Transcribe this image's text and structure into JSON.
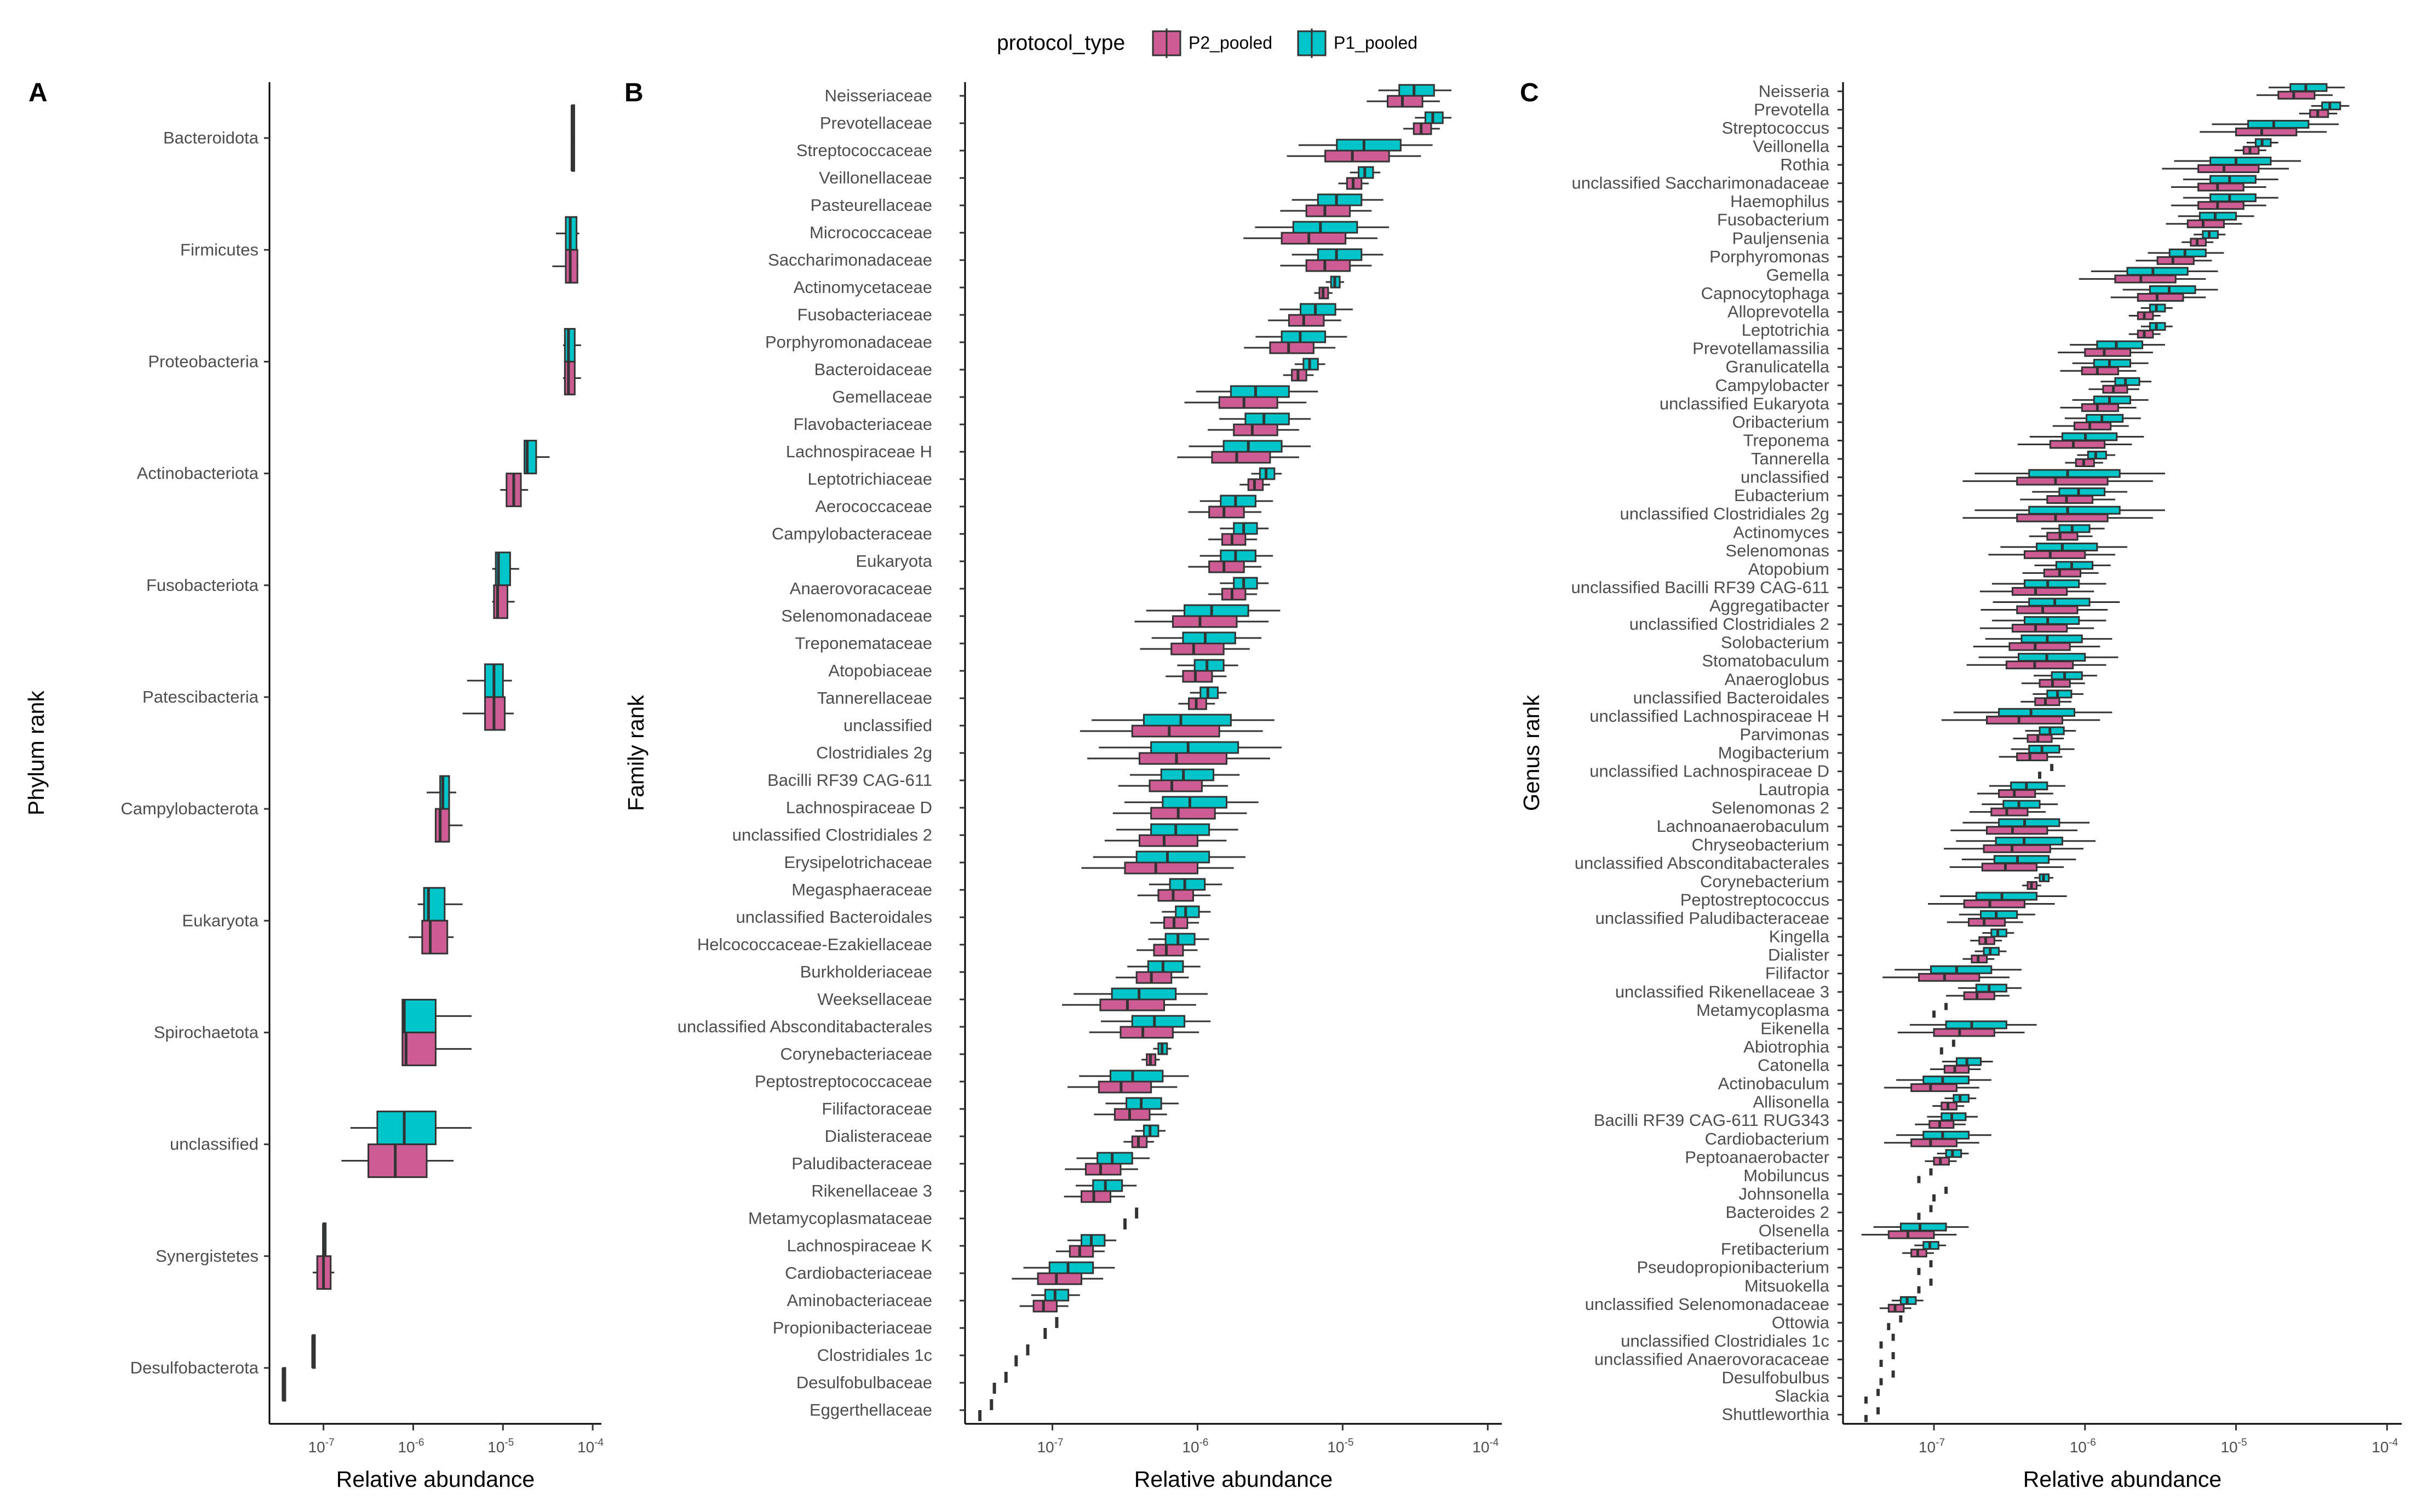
{
  "legend": {
    "title": "protocol_type",
    "items": [
      {
        "label": "P2_pooled",
        "color": "#cc5c93"
      },
      {
        "label": "P1_pooled",
        "color": "#00c5c8"
      }
    ]
  },
  "chart_data": [
    {
      "type": "boxplot",
      "panel": "A",
      "xlabel": "Relative abundance",
      "ylabel": "Phylum rank",
      "xscale": "log10",
      "xlim": [
        2.5e-08,
        0.000125
      ],
      "xticks": [
        {
          "base": "10",
          "exp": "-7",
          "value": -7
        },
        {
          "base": "10",
          "exp": "-6",
          "value": -6
        },
        {
          "base": "10",
          "exp": "-5",
          "value": -5
        },
        {
          "base": "10",
          "exp": "-4",
          "value": -4
        }
      ],
      "note": "box stats as [lower whisker, Q1, median, Q3, upper whisker] in log10 relative abundance",
      "categories": [
        {
          "name": "Bacteroidota",
          "P1_pooled": [
            -4.23,
            -4.23,
            -4.23,
            -4.23,
            -4.23
          ],
          "P2_pooled": [
            -4.23,
            -4.23,
            -4.23,
            -4.23,
            -4.23
          ]
        },
        {
          "name": "Firmicutes",
          "P1_pooled": [
            -4.41,
            -4.3,
            -4.25,
            -4.18,
            -4.15
          ],
          "P2_pooled": [
            -4.45,
            -4.3,
            -4.25,
            -4.17,
            -4.16
          ]
        },
        {
          "name": "Proteobacteria",
          "P1_pooled": [
            -4.33,
            -4.31,
            -4.27,
            -4.2,
            -4.13
          ],
          "P2_pooled": [
            -4.33,
            -4.31,
            -4.27,
            -4.2,
            -4.13
          ]
        },
        {
          "name": "Actinobacteriota",
          "P1_pooled": [
            -4.62,
            -4.76,
            -4.73,
            -4.63,
            -4.48
          ],
          "P2_pooled": [
            -5.03,
            -4.96,
            -4.88,
            -4.8,
            -4.72
          ]
        },
        {
          "name": "Fusobacteriota",
          "P1_pooled": [
            -5.12,
            -5.08,
            -5.05,
            -4.92,
            -4.82
          ],
          "P2_pooled": [
            -5.12,
            -5.1,
            -5.06,
            -4.95,
            -4.87
          ]
        },
        {
          "name": "Patescibacteria",
          "P1_pooled": [
            -5.4,
            -5.2,
            -5.1,
            -5.0,
            -4.9
          ],
          "P2_pooled": [
            -5.45,
            -5.2,
            -5.1,
            -4.98,
            -4.88
          ]
        },
        {
          "name": "Campylobacterota",
          "P1_pooled": [
            -5.85,
            -5.7,
            -5.67,
            -5.6,
            -5.52
          ],
          "P2_pooled": [
            -5.75,
            -5.75,
            -5.7,
            -5.6,
            -5.45
          ]
        },
        {
          "name": "Eukaryota",
          "P1_pooled": [
            -5.95,
            -5.88,
            -5.83,
            -5.65,
            -5.45
          ],
          "P2_pooled": [
            -6.05,
            -5.9,
            -5.81,
            -5.62,
            -5.55
          ]
        },
        {
          "name": "Spirochaetota",
          "P1_pooled": [
            -6.1,
            -6.12,
            -6.1,
            -5.75,
            -5.35
          ],
          "P2_pooled": [
            -6.1,
            -6.12,
            -6.08,
            -5.75,
            -5.35
          ]
        },
        {
          "name": "unclassified",
          "P1_pooled": [
            -6.7,
            -6.4,
            -6.1,
            -5.75,
            -5.35
          ],
          "P2_pooled": [
            -6.8,
            -6.5,
            -6.2,
            -5.85,
            -5.55
          ]
        },
        {
          "name": "Synergistetes",
          "P1_pooled": [
            -7.0,
            -7.0,
            -7.0,
            -7.0,
            -7.0
          ],
          "P2_pooled": [
            -7.12,
            -7.07,
            -7.0,
            -6.92,
            -6.88
          ]
        },
        {
          "name": "Desulfobacterota",
          "P1_pooled": [
            -7.12,
            -7.12,
            -7.12,
            -7.12,
            -7.12
          ],
          "P2_pooled": [
            -7.45,
            -7.45,
            -7.45,
            -7.45,
            -7.45
          ]
        }
      ]
    },
    {
      "type": "boxplot",
      "panel": "B",
      "xlabel": "Relative abundance",
      "ylabel": "Family rank",
      "xscale": "log10",
      "xlim": [
        2.5e-08,
        0.000125
      ],
      "xticks": [
        {
          "base": "10",
          "exp": "-7",
          "value": -7
        },
        {
          "base": "10",
          "exp": "-6",
          "value": -6
        },
        {
          "base": "10",
          "exp": "-5",
          "value": -5
        },
        {
          "base": "10",
          "exp": "-4",
          "value": -4
        }
      ],
      "categories": [
        {
          "name": "Neisseriaceae",
          "center": -4.52,
          "spread": 0.12
        },
        {
          "name": "Prevotellaceae",
          "center": -4.4,
          "spread": 0.06
        },
        {
          "name": "Streptococcaceae",
          "center": -4.85,
          "spread": 0.22
        },
        {
          "name": "Veillonellaceae",
          "center": -4.87,
          "spread": 0.05
        },
        {
          "name": "Pasteurellaceae",
          "center": -5.05,
          "spread": 0.15
        },
        {
          "name": "Micrococcaceae",
          "center": -5.15,
          "spread": 0.22
        },
        {
          "name": "Saccharimonadaceae",
          "center": -5.05,
          "spread": 0.15
        },
        {
          "name": "Actinomycetaceae",
          "center": -5.08,
          "spread": 0.03
        },
        {
          "name": "Fusobacteriaceae",
          "center": -5.2,
          "spread": 0.12
        },
        {
          "name": "Porphyromonadaceae",
          "center": -5.3,
          "spread": 0.15
        },
        {
          "name": "Bacteroidaceae",
          "center": -5.25,
          "spread": 0.05
        },
        {
          "name": "Gemellaceae",
          "center": -5.6,
          "spread": 0.2
        },
        {
          "name": "Flavobacteriaceae",
          "center": -5.55,
          "spread": 0.15
        },
        {
          "name": "Lachnospiraceae H",
          "center": -5.65,
          "spread": 0.2
        },
        {
          "name": "Leptotrichiaceae",
          "center": -5.55,
          "spread": 0.05
        },
        {
          "name": "Aerococcaceae",
          "center": -5.75,
          "spread": 0.12
        },
        {
          "name": "Campylobacteraceae",
          "center": -5.7,
          "spread": 0.08
        },
        {
          "name": "Eukaryota",
          "center": -5.75,
          "spread": 0.12
        },
        {
          "name": "Anaerovoracaceae",
          "center": -5.7,
          "spread": 0.08
        },
        {
          "name": "Selenomonadaceae",
          "center": -5.9,
          "spread": 0.22
        },
        {
          "name": "Treponemataceae",
          "center": -5.95,
          "spread": 0.18
        },
        {
          "name": "Atopobiaceae",
          "center": -5.95,
          "spread": 0.1
        },
        {
          "name": "Tannerellaceae",
          "center": -5.95,
          "spread": 0.06
        },
        {
          "name": "unclassified",
          "center": -6.1,
          "spread": 0.3
        },
        {
          "name": "Clostridiales 2g",
          "center": -6.05,
          "spread": 0.3
        },
        {
          "name": "Bacilli RF39 CAG-611",
          "center": -6.1,
          "spread": 0.18
        },
        {
          "name": "Lachnospiraceae D",
          "center": -6.05,
          "spread": 0.22
        },
        {
          "name": "unclassified Clostridiales 2",
          "center": -6.15,
          "spread": 0.2
        },
        {
          "name": "Erysipelotrichaceae",
          "center": -6.2,
          "spread": 0.25
        },
        {
          "name": "Megasphaeraceae",
          "center": -6.1,
          "spread": 0.12
        },
        {
          "name": "unclassified Bacteroidales",
          "center": -6.1,
          "spread": 0.08
        },
        {
          "name": "Helcococcaceae-Ezakiellaceae",
          "center": -6.15,
          "spread": 0.1
        },
        {
          "name": "Burkholderiaceae",
          "center": -6.25,
          "spread": 0.12
        },
        {
          "name": "Weeksellaceae",
          "center": -6.4,
          "spread": 0.22
        },
        {
          "name": "unclassified Absconditabacterales",
          "center": -6.3,
          "spread": 0.18
        },
        {
          "name": "Corynebacteriaceae",
          "center": -6.27,
          "spread": 0.03
        },
        {
          "name": "Peptostreptococcaceae",
          "center": -6.45,
          "spread": 0.18
        },
        {
          "name": "Filifactoraceae",
          "center": -6.4,
          "spread": 0.12
        },
        {
          "name": "Dialisteraceae",
          "center": -6.35,
          "spread": 0.05
        },
        {
          "name": "Paludibacteraceae",
          "center": -6.6,
          "spread": 0.12
        },
        {
          "name": "Rikenellaceae 3",
          "center": -6.65,
          "spread": 0.1
        },
        {
          "name": "Metamycoplasmataceae",
          "center": -6.45,
          "spread": 0.0
        },
        {
          "name": "Lachnospiraceae K",
          "center": -6.75,
          "spread": 0.08
        },
        {
          "name": "Cardiobacteriaceae",
          "center": -6.9,
          "spread": 0.15
        },
        {
          "name": "Aminobacteriaceae",
          "center": -7.0,
          "spread": 0.08
        },
        {
          "name": "Propionibacteriaceae",
          "center": -7.0,
          "spread": 0.0
        },
        {
          "name": "Clostridiales 1c",
          "center": -7.2,
          "spread": 0.0
        },
        {
          "name": "Desulfobulbaceae",
          "center": -7.35,
          "spread": 0.0
        },
        {
          "name": "Eggerthellaceae",
          "center": -7.45,
          "spread": 0.0
        }
      ]
    },
    {
      "type": "boxplot",
      "panel": "C",
      "xlabel": "Relative abundance",
      "ylabel": "Genus rank",
      "xscale": "log10",
      "xlim": [
        2.5e-08,
        0.000125
      ],
      "xticks": [
        {
          "base": "10",
          "exp": "-7",
          "value": -7
        },
        {
          "base": "10",
          "exp": "-6",
          "value": -6
        },
        {
          "base": "10",
          "exp": "-5",
          "value": -5
        },
        {
          "base": "10",
          "exp": "-4",
          "value": -4
        }
      ],
      "categories": [
        {
          "name": "Neisseria",
          "center": -4.55,
          "spread": 0.12
        },
        {
          "name": "Prevotella",
          "center": -4.4,
          "spread": 0.06
        },
        {
          "name": "Streptococcus",
          "center": -4.75,
          "spread": 0.2
        },
        {
          "name": "Veillonella",
          "center": -4.85,
          "spread": 0.05
        },
        {
          "name": "Rothia",
          "center": -5.0,
          "spread": 0.2
        },
        {
          "name": "unclassified Saccharimonadaceae",
          "center": -5.05,
          "spread": 0.15
        },
        {
          "name": "Haemophilus",
          "center": -5.05,
          "spread": 0.15
        },
        {
          "name": "Fusobacterium",
          "center": -5.15,
          "spread": 0.12
        },
        {
          "name": "Pauljensenia",
          "center": -5.2,
          "spread": 0.05
        },
        {
          "name": "Porphyromonas",
          "center": -5.35,
          "spread": 0.12
        },
        {
          "name": "Gemella",
          "center": -5.55,
          "spread": 0.2
        },
        {
          "name": "Capnocytophaga",
          "center": -5.45,
          "spread": 0.15
        },
        {
          "name": "Alloprevotella",
          "center": -5.55,
          "spread": 0.05
        },
        {
          "name": "Leptotrichia",
          "center": -5.55,
          "spread": 0.05
        },
        {
          "name": "Prevotellamassilia",
          "center": -5.8,
          "spread": 0.15
        },
        {
          "name": "Granulicatella",
          "center": -5.85,
          "spread": 0.12
        },
        {
          "name": "Campylobacter",
          "center": -5.75,
          "spread": 0.08
        },
        {
          "name": "unclassified Eukaryota",
          "center": -5.85,
          "spread": 0.12
        },
        {
          "name": "Oribacterium",
          "center": -5.9,
          "spread": 0.12
        },
        {
          "name": "Treponema",
          "center": -6.0,
          "spread": 0.18
        },
        {
          "name": "Tannerella",
          "center": -5.95,
          "spread": 0.06
        },
        {
          "name": "unclassified",
          "center": -6.1,
          "spread": 0.3
        },
        {
          "name": "Eubacterium",
          "center": -6.05,
          "spread": 0.15
        },
        {
          "name": "unclassified Clostridiales 2g",
          "center": -6.1,
          "spread": 0.3
        },
        {
          "name": "Actinomyces",
          "center": -6.1,
          "spread": 0.1
        },
        {
          "name": "Selenomonas",
          "center": -6.15,
          "spread": 0.2
        },
        {
          "name": "Atopobium",
          "center": -6.1,
          "spread": 0.12
        },
        {
          "name": "unclassified Bacilli RF39 CAG-611",
          "center": -6.25,
          "spread": 0.18
        },
        {
          "name": "Aggregatibacter",
          "center": -6.2,
          "spread": 0.2
        },
        {
          "name": "unclassified Clostridiales 2",
          "center": -6.25,
          "spread": 0.18
        },
        {
          "name": "Solobacterium",
          "center": -6.25,
          "spread": 0.2
        },
        {
          "name": "Stomatobaculum",
          "center": -6.25,
          "spread": 0.22
        },
        {
          "name": "Anaeroglobus",
          "center": -6.15,
          "spread": 0.1
        },
        {
          "name": "unclassified Bacteroidales",
          "center": -6.2,
          "spread": 0.08
        },
        {
          "name": "unclassified Lachnospiraceae H",
          "center": -6.35,
          "spread": 0.25
        },
        {
          "name": "Parvimonas",
          "center": -6.25,
          "spread": 0.08
        },
        {
          "name": "Mogibacterium",
          "center": -6.3,
          "spread": 0.1
        },
        {
          "name": "unclassified Lachnospiraceae D",
          "center": -6.25,
          "spread": 0.0
        },
        {
          "name": "Lautropia",
          "center": -6.4,
          "spread": 0.12
        },
        {
          "name": "Selenomonas 2",
          "center": -6.45,
          "spread": 0.12
        },
        {
          "name": "Lachnoanaerobaculum",
          "center": -6.4,
          "spread": 0.2
        },
        {
          "name": "Chryseobacterium",
          "center": -6.4,
          "spread": 0.22
        },
        {
          "name": "unclassified Absconditabacterales",
          "center": -6.45,
          "spread": 0.18
        },
        {
          "name": "Corynebacterium",
          "center": -6.3,
          "spread": 0.03
        },
        {
          "name": "Peptostreptococcus",
          "center": -6.55,
          "spread": 0.2
        },
        {
          "name": "unclassified Paludibacteraceae",
          "center": -6.6,
          "spread": 0.12
        },
        {
          "name": "Kingella",
          "center": -6.6,
          "spread": 0.05
        },
        {
          "name": "Dialister",
          "center": -6.65,
          "spread": 0.05
        },
        {
          "name": "Filifactor",
          "center": -6.85,
          "spread": 0.2
        },
        {
          "name": "unclassified Rikenellaceae 3",
          "center": -6.65,
          "spread": 0.1
        },
        {
          "name": "Metamycoplasma",
          "center": -6.95,
          "spread": 0.0
        },
        {
          "name": "Eikenella",
          "center": -6.75,
          "spread": 0.2
        },
        {
          "name": "Abiotrophia",
          "center": -6.9,
          "spread": 0.0
        },
        {
          "name": "Catonella",
          "center": -6.8,
          "spread": 0.08
        },
        {
          "name": "Actinobaculum",
          "center": -6.95,
          "spread": 0.15
        },
        {
          "name": "Allisonella",
          "center": -6.85,
          "spread": 0.05
        },
        {
          "name": "Bacilli RF39 CAG-611 RUG343",
          "center": -6.9,
          "spread": 0.08
        },
        {
          "name": "Cardiobacterium",
          "center": -6.95,
          "spread": 0.15
        },
        {
          "name": "Peptoanaerobacter",
          "center": -6.9,
          "spread": 0.05
        },
        {
          "name": "Mobiluncus",
          "center": -7.05,
          "spread": 0.0
        },
        {
          "name": "Johnsonella",
          "center": -6.95,
          "spread": 0.0
        },
        {
          "name": "Bacteroides 2",
          "center": -7.05,
          "spread": 0.0
        },
        {
          "name": "Olsenella",
          "center": -7.1,
          "spread": 0.15
        },
        {
          "name": "Fretibacterium",
          "center": -7.05,
          "spread": 0.05
        },
        {
          "name": "Pseudopropionibacterium",
          "center": -7.05,
          "spread": 0.0
        },
        {
          "name": "Mitsuokella",
          "center": -7.05,
          "spread": 0.0
        },
        {
          "name": "unclassified Selenomonadaceae",
          "center": -7.2,
          "spread": 0.05
        },
        {
          "name": "Ottowia",
          "center": -7.25,
          "spread": 0.0
        },
        {
          "name": "unclassified Clostridiales 1c",
          "center": -7.3,
          "spread": 0.0
        },
        {
          "name": "unclassified Anaerovoracaceae",
          "center": -7.3,
          "spread": 0.0
        },
        {
          "name": "Desulfobulbus",
          "center": -7.3,
          "spread": 0.0
        },
        {
          "name": "Slackia",
          "center": -7.4,
          "spread": 0.0
        },
        {
          "name": "Shuttleworthia",
          "center": -7.4,
          "spread": 0.0
        }
      ]
    }
  ]
}
